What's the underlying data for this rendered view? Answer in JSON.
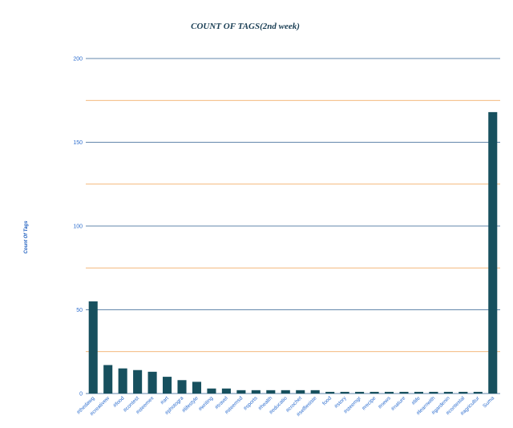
{
  "chart_data": {
    "type": "bar",
    "title": "COUNT OF TAGS(2nd week)",
    "xlabel": "",
    "ylabel": "Count Of Tags",
    "ylim": [
      0,
      200
    ],
    "yticks": [
      0,
      50,
      100,
      150,
      200
    ],
    "grid": true,
    "legend": "none",
    "categories": [
      "#thedawg",
      "#creativew",
      "#food",
      "#contest",
      "#steemex",
      "#art",
      "#photogra",
      "#lifestyle",
      "#writing",
      "#travel",
      "#steemsd",
      "#sports",
      "#health",
      "#educatio",
      "#crochet",
      "#selfiesiste",
      "food",
      "#story",
      "#steemgr",
      "#recipe",
      "#news",
      "#nature",
      "#life",
      "#learnwith",
      "#gardenin",
      "#contestal",
      "#agricultur",
      "Suma"
    ],
    "values": [
      55,
      17,
      15,
      14,
      13,
      10,
      8,
      7,
      3,
      3,
      2,
      2,
      2,
      2,
      2,
      2,
      1,
      1,
      1,
      1,
      1,
      1,
      1,
      1,
      1,
      1,
      1,
      168
    ],
    "colors": {
      "bar": "#17505e",
      "major_grid": "#2f5f8f",
      "minor_grid": "#f0a050",
      "axis": "#2f6fcf"
    }
  }
}
